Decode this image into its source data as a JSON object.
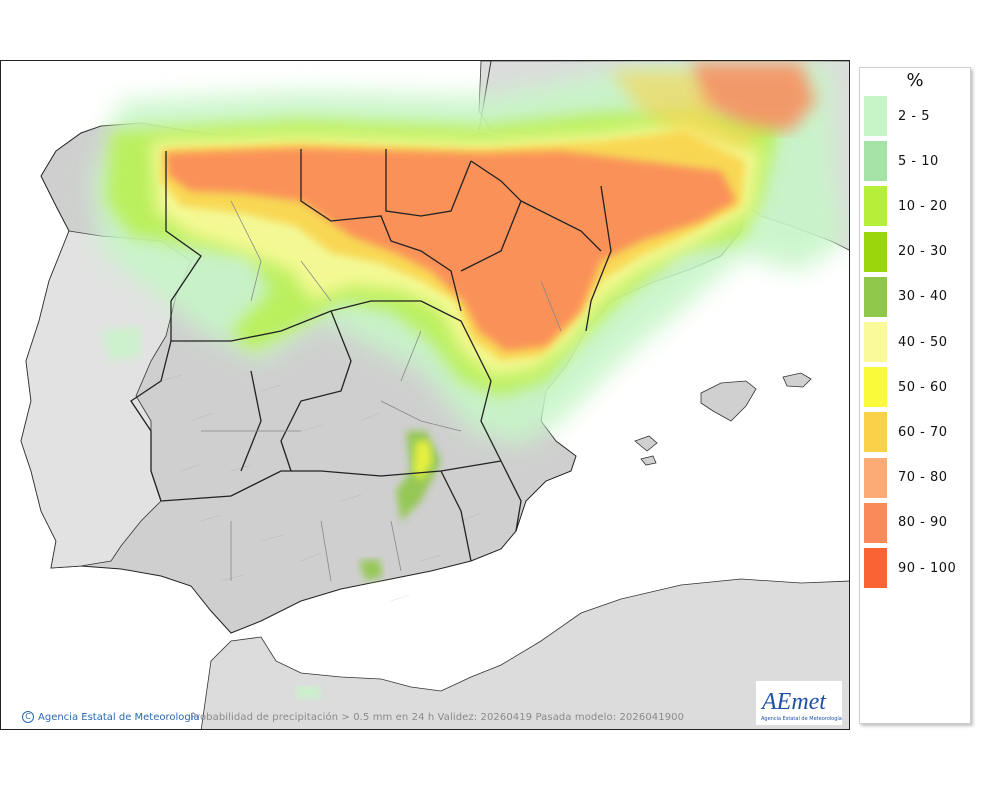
{
  "map": {
    "title_caption": "Probabilidad de precipitación > 0.5 mm en 24 h Validez: 20260419 Pasada modelo: 2026041900",
    "credit": "Agencia Estatal de Meteorología",
    "copyright_symbol": "C",
    "logo_text": "AEmet",
    "logo_subtext": "Agencia Estatal de Meteorología"
  },
  "legend": {
    "title": "%",
    "items": [
      {
        "label": "2 - 5",
        "color": "#c8f5c8"
      },
      {
        "label": "5 - 10",
        "color": "#a6e3a6"
      },
      {
        "label": "10 - 20",
        "color": "#b6ef3a"
      },
      {
        "label": "20 - 30",
        "color": "#9ad60c"
      },
      {
        "label": "30 - 40",
        "color": "#8fc74a"
      },
      {
        "label": "40 - 50",
        "color": "#fafa9a"
      },
      {
        "label": "50 - 60",
        "color": "#fafa3a"
      },
      {
        "label": "60 - 70",
        "color": "#fad24a"
      },
      {
        "label": "70 - 80",
        "color": "#fcaa76"
      },
      {
        "label": "80 - 90",
        "color": "#fa8a5a"
      },
      {
        "label": "90 - 100",
        "color": "#fa6432"
      }
    ]
  }
}
